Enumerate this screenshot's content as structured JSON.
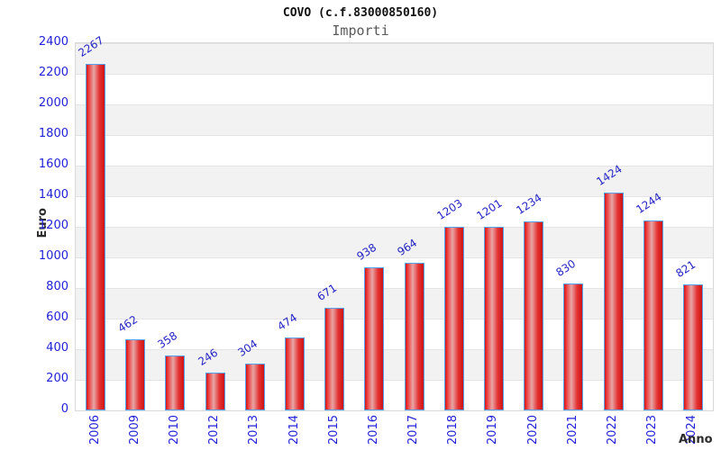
{
  "title": "COVO (c.f.83000850160)",
  "subtitle": "Importi",
  "chart_data": {
    "type": "bar",
    "title": "COVO (c.f.83000850160)",
    "subtitle": "Importi",
    "xlabel": "Anno",
    "ylabel": "Euro",
    "categories": [
      "2006",
      "2009",
      "2010",
      "2012",
      "2013",
      "2014",
      "2015",
      "2016",
      "2017",
      "2018",
      "2019",
      "2020",
      "2021",
      "2022",
      "2023",
      "2024"
    ],
    "values": [
      2267,
      462,
      358,
      246,
      304,
      474,
      671,
      938,
      964,
      1203,
      1201,
      1234,
      830,
      1424,
      1244,
      821
    ],
    "yticks": [
      2400,
      2200,
      2000,
      1800,
      1600,
      1400,
      1200,
      1000,
      800,
      600,
      400,
      200,
      0
    ],
    "ylim": [
      0,
      2400
    ],
    "grid": "horizontal-bands",
    "legend": "none",
    "colors": {
      "bar_fill": "#e62020",
      "bar_border": "#55a2f0",
      "tick_label": "#2222d6",
      "value_label": "#2525c4",
      "band_gray": "#f2f2f2",
      "band_white": "#ffffff",
      "axis_title": "#2b2b2b",
      "title": "#111111",
      "subtitle": "#595959"
    }
  }
}
